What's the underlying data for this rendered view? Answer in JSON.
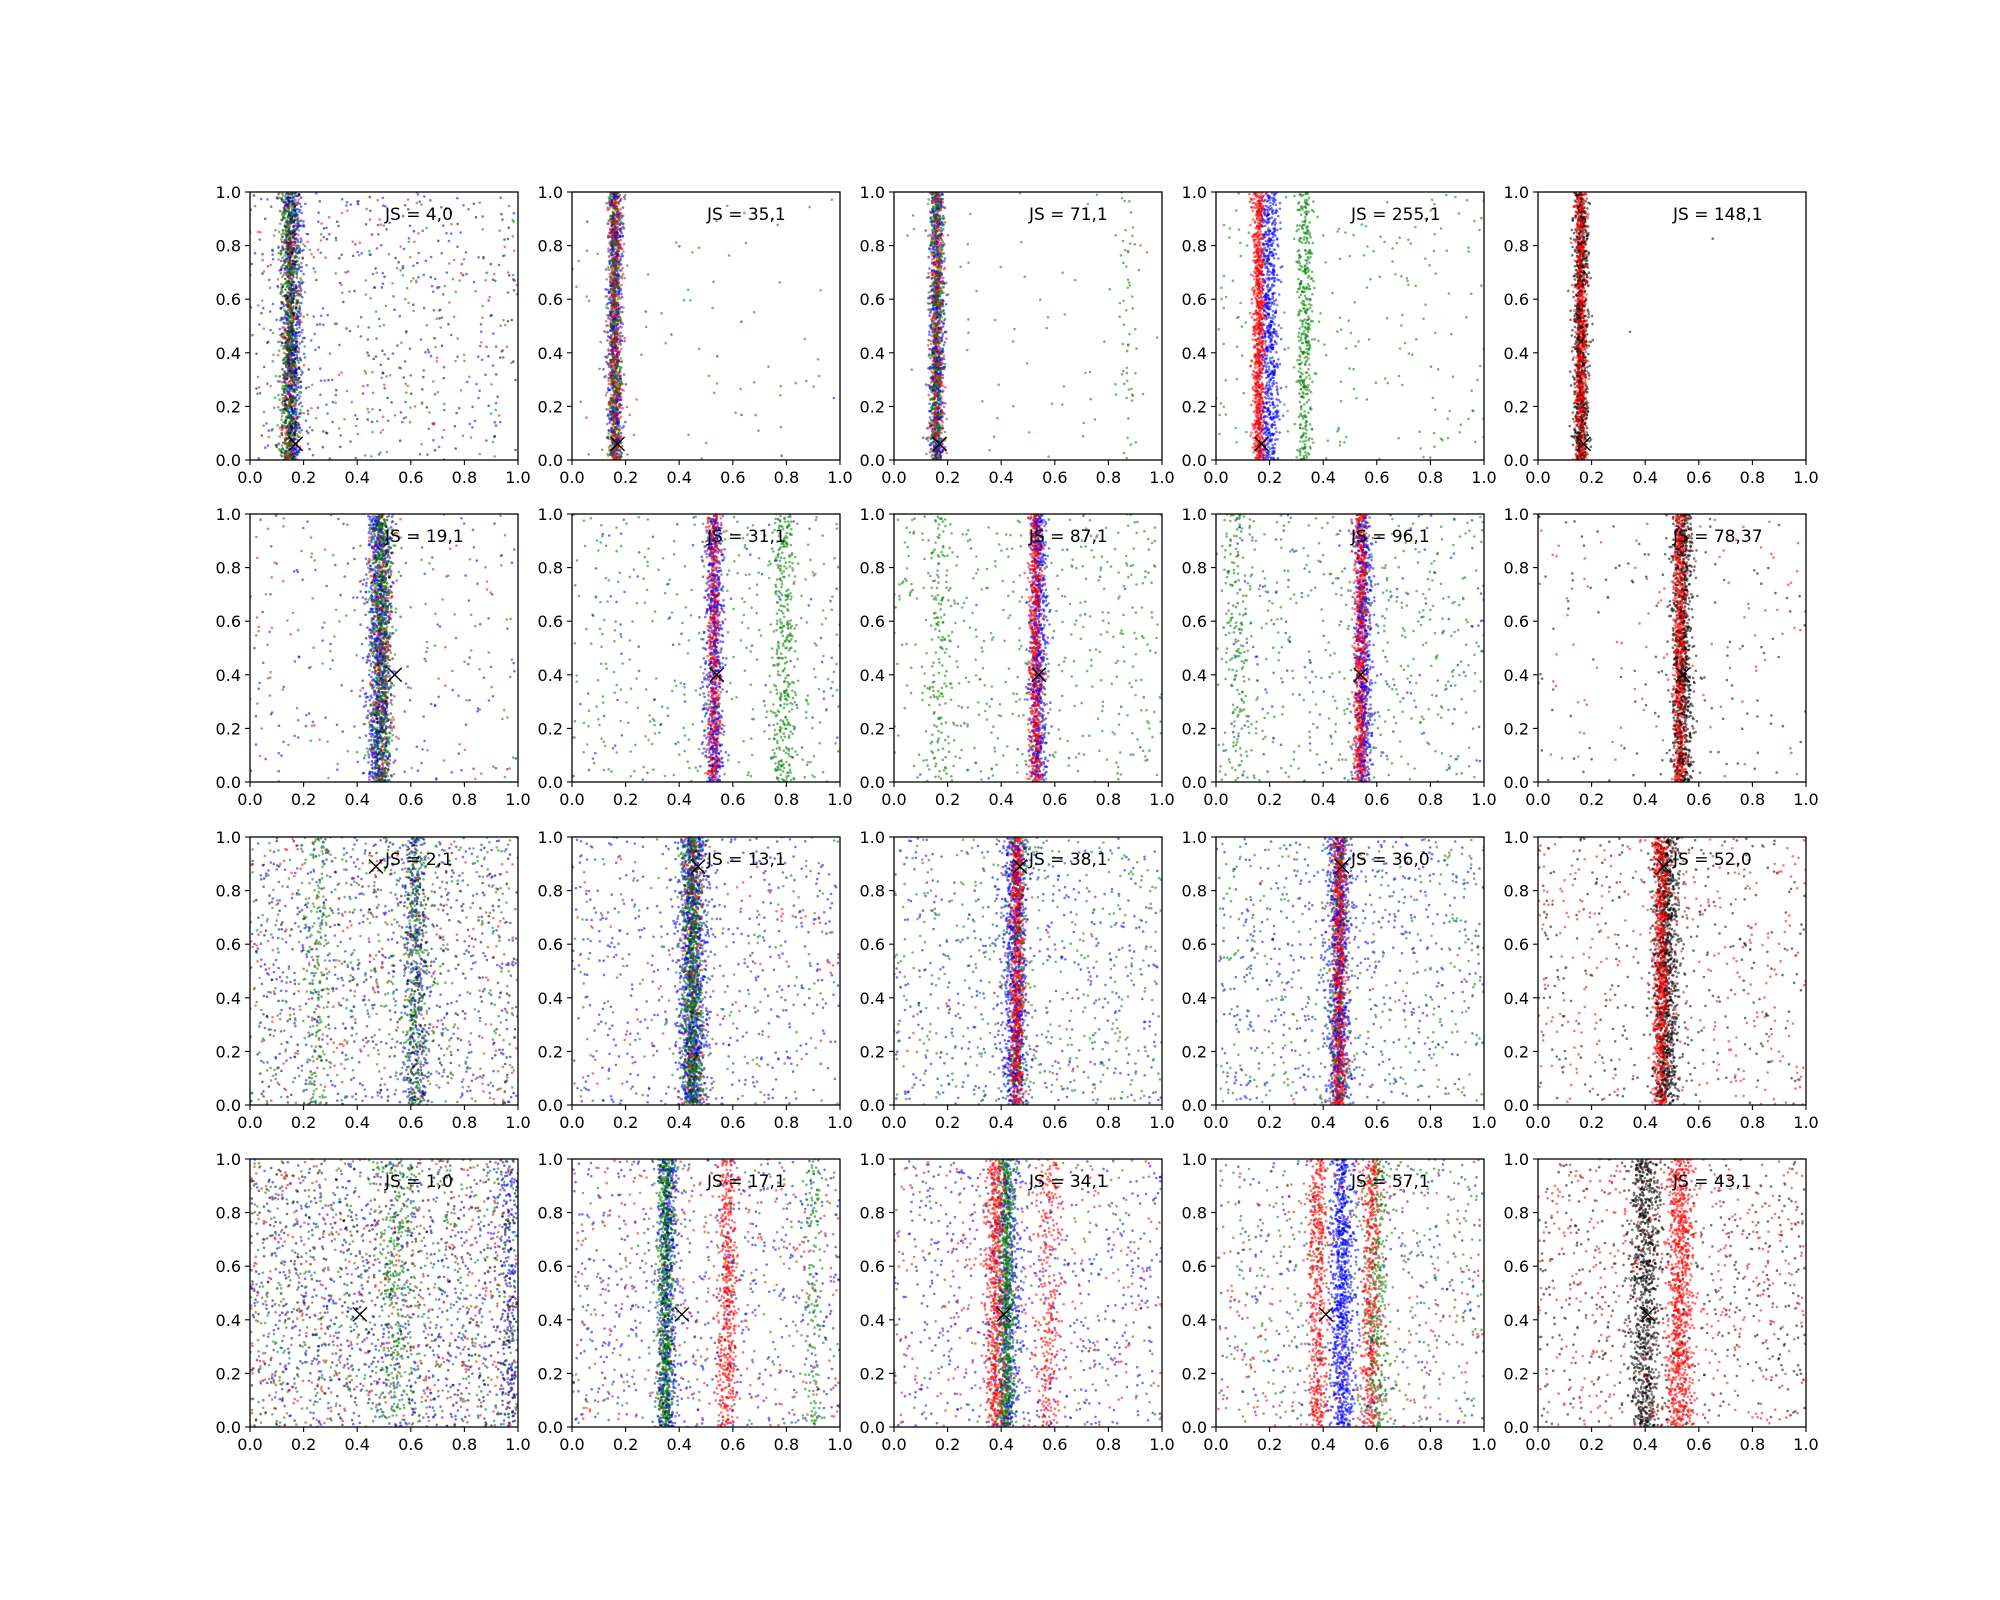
{
  "chart_data": {
    "type": "scatter",
    "layout": {
      "rows": 4,
      "cols": 5
    },
    "xlim": [
      0,
      1
    ],
    "ylim": [
      0,
      1
    ],
    "xticks": [
      "0.0",
      "0.2",
      "0.4",
      "0.6",
      "0.8",
      "1.0"
    ],
    "yticks": [
      "0.0",
      "0.2",
      "0.4",
      "0.6",
      "0.8",
      "1.0"
    ],
    "colors": {
      "blue": "#0000ff",
      "red": "#ff0000",
      "green": "#008000",
      "black": "#000000"
    },
    "panels": [
      {
        "row": 0,
        "col": 0,
        "label": "JS = 4,0",
        "marker": [
          0.17,
          0.06
        ],
        "bands": [
          {
            "color": "green",
            "center": 0.15,
            "width": 0.035,
            "count": 700
          },
          {
            "color": "blue",
            "center": 0.16,
            "width": 0.04,
            "count": 500
          },
          {
            "color": "red",
            "center": 0.15,
            "width": 0.035,
            "count": 300
          },
          {
            "color": "black",
            "center": 0.15,
            "width": 0.035,
            "count": 300
          }
        ],
        "noise": {
          "blue": 250,
          "red": 120,
          "green": 120,
          "black": 120
        }
      },
      {
        "row": 0,
        "col": 1,
        "label": "JS = 35,1",
        "marker": [
          0.17,
          0.06
        ],
        "bands": [
          {
            "color": "blue",
            "center": 0.16,
            "width": 0.03,
            "count": 500
          },
          {
            "color": "red",
            "center": 0.16,
            "width": 0.025,
            "count": 600
          },
          {
            "color": "green",
            "center": 0.16,
            "width": 0.025,
            "count": 500
          }
        ],
        "noise": {
          "green": 60,
          "red": 15,
          "blue": 10
        }
      },
      {
        "row": 0,
        "col": 2,
        "label": "JS = 71,1",
        "marker": [
          0.17,
          0.06
        ],
        "bands": [
          {
            "color": "blue",
            "center": 0.16,
            "width": 0.03,
            "count": 500
          },
          {
            "color": "red",
            "center": 0.16,
            "width": 0.025,
            "count": 500
          },
          {
            "color": "green",
            "center": 0.16,
            "width": 0.025,
            "count": 600
          },
          {
            "color": "green",
            "center": 0.87,
            "width": 0.03,
            "count": 50
          }
        ],
        "noise": {
          "green": 60,
          "red": 10
        }
      },
      {
        "row": 0,
        "col": 3,
        "label": "JS = 255,1",
        "marker": [
          0.17,
          0.06
        ],
        "bands": [
          {
            "color": "blue",
            "center": 0.2,
            "width": 0.035,
            "count": 700
          },
          {
            "color": "red",
            "center": 0.16,
            "width": 0.022,
            "count": 900
          },
          {
            "color": "green",
            "center": 0.33,
            "width": 0.03,
            "count": 400
          }
        ],
        "noise": {
          "green": 220
        }
      },
      {
        "row": 0,
        "col": 4,
        "label": "JS = 148,1",
        "marker": [
          0.17,
          0.06
        ],
        "bands": [
          {
            "color": "black",
            "center": 0.16,
            "width": 0.03,
            "count": 700
          },
          {
            "color": "red",
            "center": 0.16,
            "width": 0.022,
            "count": 900
          }
        ],
        "noise": {
          "black": 2
        }
      },
      {
        "row": 1,
        "col": 0,
        "label": "JS = 19,1",
        "marker": [
          0.54,
          0.4
        ],
        "bands": [
          {
            "color": "blue",
            "center": 0.48,
            "width": 0.05,
            "count": 700
          },
          {
            "color": "green",
            "center": 0.49,
            "width": 0.04,
            "count": 800
          },
          {
            "color": "red",
            "center": 0.49,
            "width": 0.04,
            "count": 300
          },
          {
            "color": "black",
            "center": 0.49,
            "width": 0.04,
            "count": 150
          }
        ],
        "noise": {
          "blue": 150,
          "red": 80,
          "green": 60
        }
      },
      {
        "row": 1,
        "col": 1,
        "label": "JS = 31,1",
        "marker": [
          0.54,
          0.4
        ],
        "bands": [
          {
            "color": "blue",
            "center": 0.53,
            "width": 0.035,
            "count": 600
          },
          {
            "color": "red",
            "center": 0.53,
            "width": 0.025,
            "count": 600
          },
          {
            "color": "green",
            "center": 0.79,
            "width": 0.045,
            "count": 350
          }
        ],
        "noise": {
          "green": 350,
          "blue": 80
        }
      },
      {
        "row": 1,
        "col": 2,
        "label": "JS = 87,1",
        "marker": [
          0.54,
          0.4
        ],
        "bands": [
          {
            "color": "blue",
            "center": 0.54,
            "width": 0.035,
            "count": 600
          },
          {
            "color": "red",
            "center": 0.53,
            "width": 0.025,
            "count": 800
          },
          {
            "color": "green",
            "center": 0.17,
            "width": 0.05,
            "count": 150
          }
        ],
        "noise": {
          "green": 450,
          "blue": 20
        }
      },
      {
        "row": 1,
        "col": 3,
        "label": "JS = 96,1",
        "marker": [
          0.54,
          0.4
        ],
        "bands": [
          {
            "color": "blue",
            "center": 0.55,
            "width": 0.035,
            "count": 600
          },
          {
            "color": "red",
            "center": 0.54,
            "width": 0.025,
            "count": 800
          },
          {
            "color": "green",
            "center": 0.08,
            "width": 0.05,
            "count": 150
          }
        ],
        "noise": {
          "green": 450,
          "blue": 150
        }
      },
      {
        "row": 1,
        "col": 4,
        "label": "JS = 78,37",
        "marker": [
          0.54,
          0.4
        ],
        "bands": [
          {
            "color": "black",
            "center": 0.54,
            "width": 0.04,
            "count": 800
          },
          {
            "color": "red",
            "center": 0.53,
            "width": 0.025,
            "count": 800
          }
        ],
        "noise": {
          "black": 120,
          "red": 100
        }
      },
      {
        "row": 2,
        "col": 0,
        "label": "JS = 2,1",
        "marker": [
          0.47,
          0.89
        ],
        "bands": [
          {
            "color": "green",
            "center": 0.62,
            "width": 0.04,
            "count": 300
          },
          {
            "color": "blue",
            "center": 0.62,
            "width": 0.05,
            "count": 200
          },
          {
            "color": "black",
            "center": 0.62,
            "width": 0.04,
            "count": 150
          },
          {
            "color": "green",
            "center": 0.25,
            "width": 0.06,
            "count": 200
          }
        ],
        "noise": {
          "blue": 500,
          "red": 250,
          "green": 400,
          "black": 300
        }
      },
      {
        "row": 2,
        "col": 1,
        "label": "JS = 13,1",
        "marker": [
          0.47,
          0.89
        ],
        "bands": [
          {
            "color": "blue",
            "center": 0.45,
            "width": 0.06,
            "count": 800
          },
          {
            "color": "green",
            "center": 0.45,
            "width": 0.04,
            "count": 900
          },
          {
            "color": "red",
            "center": 0.45,
            "width": 0.04,
            "count": 250
          },
          {
            "color": "black",
            "center": 0.45,
            "width": 0.04,
            "count": 150
          }
        ],
        "noise": {
          "blue": 450,
          "red": 120,
          "green": 120
        }
      },
      {
        "row": 2,
        "col": 2,
        "label": "JS = 38,1",
        "marker": [
          0.47,
          0.89
        ],
        "bands": [
          {
            "color": "blue",
            "center": 0.45,
            "width": 0.05,
            "count": 700
          },
          {
            "color": "red",
            "center": 0.46,
            "width": 0.025,
            "count": 900
          },
          {
            "color": "green",
            "center": 0.46,
            "width": 0.04,
            "count": 200
          }
        ],
        "noise": {
          "blue": 400,
          "green": 400,
          "red": 60
        }
      },
      {
        "row": 2,
        "col": 3,
        "label": "JS = 36,0",
        "marker": [
          0.47,
          0.89
        ],
        "bands": [
          {
            "color": "blue",
            "center": 0.46,
            "width": 0.05,
            "count": 700
          },
          {
            "color": "red",
            "center": 0.46,
            "width": 0.025,
            "count": 900
          },
          {
            "color": "green",
            "center": 0.46,
            "width": 0.04,
            "count": 200
          }
        ],
        "noise": {
          "blue": 450,
          "green": 380,
          "red": 40
        }
      },
      {
        "row": 2,
        "col": 4,
        "label": "JS = 52,0",
        "marker": [
          0.47,
          0.89
        ],
        "bands": [
          {
            "color": "black",
            "center": 0.48,
            "width": 0.05,
            "count": 900
          },
          {
            "color": "red",
            "center": 0.46,
            "width": 0.03,
            "count": 900
          }
        ],
        "noise": {
          "black": 300,
          "red": 350
        }
      },
      {
        "row": 3,
        "col": 0,
        "label": "JS = 1,0",
        "marker": [
          0.41,
          0.42
        ],
        "bands": [
          {
            "color": "green",
            "center": 0.55,
            "width": 0.07,
            "count": 300
          },
          {
            "color": "blue",
            "center": 0.97,
            "width": 0.04,
            "count": 150
          },
          {
            "color": "black",
            "center": 0.97,
            "width": 0.04,
            "count": 100
          }
        ],
        "noise": {
          "blue": 700,
          "red": 450,
          "green": 550,
          "black": 450
        }
      },
      {
        "row": 3,
        "col": 1,
        "label": "JS = 17,1",
        "marker": [
          0.41,
          0.42
        ],
        "bands": [
          {
            "color": "green",
            "center": 0.35,
            "width": 0.03,
            "count": 700
          },
          {
            "color": "blue",
            "center": 0.36,
            "width": 0.04,
            "count": 400
          },
          {
            "color": "red",
            "center": 0.58,
            "width": 0.035,
            "count": 500
          },
          {
            "color": "green",
            "center": 0.9,
            "width": 0.035,
            "count": 150
          },
          {
            "color": "black",
            "center": 0.35,
            "width": 0.03,
            "count": 150
          }
        ],
        "noise": {
          "blue": 500,
          "red": 300,
          "green": 150
        }
      },
      {
        "row": 3,
        "col": 2,
        "label": "JS = 34,1",
        "marker": [
          0.41,
          0.42
        ],
        "bands": [
          {
            "color": "red",
            "center": 0.38,
            "width": 0.04,
            "count": 700
          },
          {
            "color": "green",
            "center": 0.42,
            "width": 0.03,
            "count": 800
          },
          {
            "color": "blue",
            "center": 0.43,
            "width": 0.05,
            "count": 400
          },
          {
            "color": "red",
            "center": 0.58,
            "width": 0.05,
            "count": 300
          }
        ],
        "noise": {
          "blue": 500,
          "red": 300,
          "green": 80
        }
      },
      {
        "row": 3,
        "col": 3,
        "label": "JS = 57,1",
        "marker": [
          0.41,
          0.42
        ],
        "bands": [
          {
            "color": "red",
            "center": 0.38,
            "width": 0.035,
            "count": 500
          },
          {
            "color": "blue",
            "center": 0.47,
            "width": 0.045,
            "count": 900
          },
          {
            "color": "red",
            "center": 0.58,
            "width": 0.035,
            "count": 500
          },
          {
            "color": "green",
            "center": 0.6,
            "width": 0.045,
            "count": 300
          }
        ],
        "noise": {
          "green": 350,
          "red": 250,
          "blue": 250
        }
      },
      {
        "row": 3,
        "col": 4,
        "label": "JS = 43,1",
        "marker": [
          0.41,
          0.42
        ],
        "bands": [
          {
            "color": "black",
            "center": 0.4,
            "width": 0.06,
            "count": 900
          },
          {
            "color": "red",
            "center": 0.53,
            "width": 0.05,
            "count": 900
          }
        ],
        "noise": {
          "black": 400,
          "red": 500
        }
      }
    ]
  }
}
